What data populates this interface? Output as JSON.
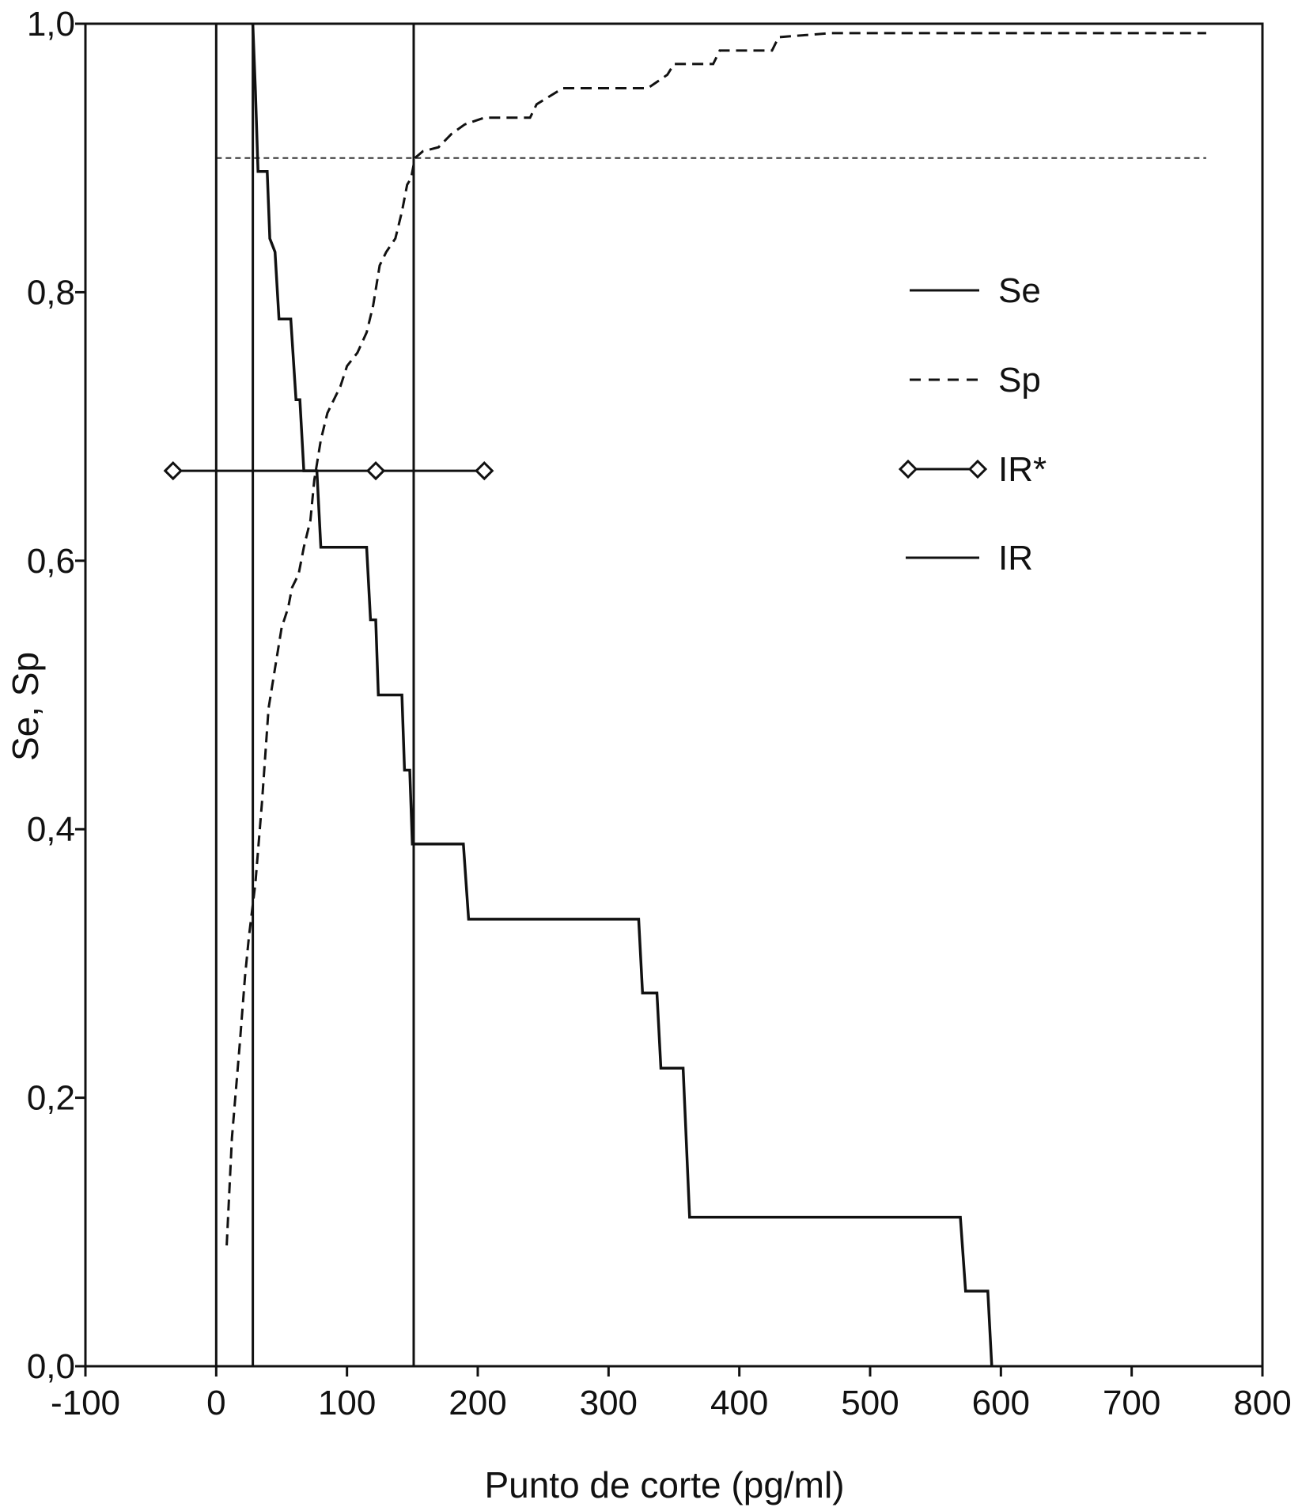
{
  "chart_data": {
    "type": "line",
    "title": "",
    "xlabel": "Punto de corte (pg/ml)",
    "ylabel": "Se, Sp",
    "xlim": [
      -100,
      800
    ],
    "ylim": [
      0,
      1
    ],
    "xticks": [
      -100,
      0,
      100,
      200,
      300,
      400,
      500,
      600,
      700,
      800
    ],
    "xtick_labels": [
      "-100",
      "0",
      "100",
      "200",
      "300",
      "400",
      "500",
      "600",
      "700",
      "800"
    ],
    "yticks": [
      0,
      0.2,
      0.4,
      0.6,
      0.8,
      1.0
    ],
    "ytick_labels": [
      "0,0",
      "0,2",
      "0,4",
      "0,6",
      "0,8",
      "1,0"
    ],
    "grid": false,
    "legend_position": "right",
    "series": [
      {
        "name": "Se",
        "style": "solid",
        "points": [
          [
            28,
            1.0
          ],
          [
            30,
            0.95
          ],
          [
            32,
            0.89
          ],
          [
            39,
            0.89
          ],
          [
            41,
            0.84
          ],
          [
            45,
            0.83
          ],
          [
            48,
            0.78
          ],
          [
            57,
            0.78
          ],
          [
            61,
            0.72
          ],
          [
            64,
            0.72
          ],
          [
            67,
            0.667
          ],
          [
            77,
            0.667
          ],
          [
            80,
            0.61
          ],
          [
            115,
            0.61
          ],
          [
            118,
            0.556
          ],
          [
            122,
            0.556
          ],
          [
            124,
            0.5
          ],
          [
            142,
            0.5
          ],
          [
            144,
            0.444
          ],
          [
            148,
            0.444
          ],
          [
            150,
            0.389
          ],
          [
            189,
            0.389
          ],
          [
            193,
            0.333
          ],
          [
            323,
            0.333
          ],
          [
            326,
            0.278
          ],
          [
            337,
            0.278
          ],
          [
            340,
            0.222
          ],
          [
            357,
            0.222
          ],
          [
            362,
            0.111
          ],
          [
            569,
            0.111
          ],
          [
            573,
            0.056
          ],
          [
            590,
            0.056
          ],
          [
            593,
            0.0
          ]
        ]
      },
      {
        "name": "Sp",
        "style": "dashed",
        "points": [
          [
            8,
            0.09
          ],
          [
            12,
            0.17
          ],
          [
            18,
            0.24
          ],
          [
            22,
            0.29
          ],
          [
            25,
            0.32
          ],
          [
            30,
            0.36
          ],
          [
            35,
            0.42
          ],
          [
            40,
            0.49
          ],
          [
            45,
            0.52
          ],
          [
            50,
            0.55
          ],
          [
            55,
            0.565
          ],
          [
            58,
            0.58
          ],
          [
            63,
            0.59
          ],
          [
            67,
            0.61
          ],
          [
            72,
            0.63
          ],
          [
            75,
            0.66
          ],
          [
            80,
            0.69
          ],
          [
            85,
            0.71
          ],
          [
            90,
            0.72
          ],
          [
            95,
            0.73
          ],
          [
            100,
            0.745
          ],
          [
            108,
            0.755
          ],
          [
            115,
            0.77
          ],
          [
            120,
            0.79
          ],
          [
            125,
            0.82
          ],
          [
            130,
            0.83
          ],
          [
            137,
            0.84
          ],
          [
            142,
            0.86
          ],
          [
            146,
            0.88
          ],
          [
            149,
            0.885
          ],
          [
            152,
            0.9
          ],
          [
            158,
            0.905
          ],
          [
            170,
            0.908
          ],
          [
            180,
            0.918
          ],
          [
            190,
            0.925
          ],
          [
            205,
            0.93
          ],
          [
            240,
            0.93
          ],
          [
            245,
            0.94
          ],
          [
            265,
            0.952
          ],
          [
            330,
            0.952
          ],
          [
            345,
            0.962
          ],
          [
            350,
            0.97
          ],
          [
            380,
            0.97
          ],
          [
            385,
            0.98
          ],
          [
            425,
            0.98
          ],
          [
            430,
            0.99
          ],
          [
            470,
            0.993
          ],
          [
            757,
            0.993
          ]
        ]
      },
      {
        "name": "IR*",
        "style": "solid-diamond-markers",
        "points": [
          [
            -33,
            0.667
          ],
          [
            122,
            0.667
          ],
          [
            205,
            0.667
          ]
        ]
      },
      {
        "name": "IR",
        "style": "solid",
        "vertical_lines_x": [
          0,
          28,
          151
        ]
      }
    ],
    "reference_lines": [
      {
        "orientation": "horizontal",
        "y": 0.9,
        "x_from": 0,
        "x_to": 757,
        "style": "fine-dashed"
      }
    ]
  }
}
